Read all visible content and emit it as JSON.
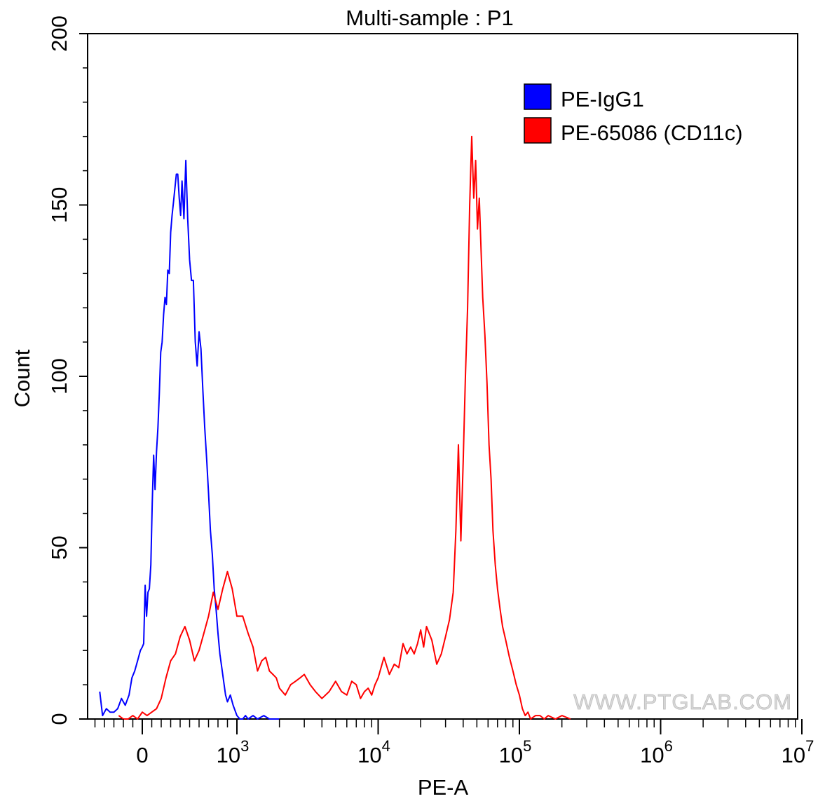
{
  "chart_data": {
    "type": "line",
    "title": "Multi-sample : P1",
    "xlabel": "PE-A",
    "ylabel": "Count",
    "xscale": "biexponential",
    "ylim": [
      0,
      200
    ],
    "x_ticks": [
      {
        "value": 0,
        "label": "0",
        "sup": ""
      },
      {
        "value": 1000,
        "label": "10",
        "sup": "3"
      },
      {
        "value": 10000,
        "label": "10",
        "sup": "4"
      },
      {
        "value": 100000,
        "label": "10",
        "sup": "5"
      },
      {
        "value": 1000000,
        "label": "10",
        "sup": "6"
      },
      {
        "value": 10000000,
        "label": "10",
        "sup": "7"
      }
    ],
    "y_ticks": [
      {
        "value": 0,
        "label": "0"
      },
      {
        "value": 50,
        "label": "50"
      },
      {
        "value": 100,
        "label": "100"
      },
      {
        "value": 150,
        "label": "150"
      },
      {
        "value": 200,
        "label": "200"
      }
    ],
    "legend_position": "top-right",
    "watermark": "WWW.PTGLAB.COM",
    "series": [
      {
        "name": "PE-IgG1",
        "color": "#0000ff",
        "x": [
          -450,
          -420,
          -380,
          -340,
          -300,
          -260,
          -220,
          -180,
          -140,
          -110,
          -80,
          -50,
          -20,
          0,
          15,
          30,
          45,
          60,
          75,
          90,
          105,
          120,
          135,
          150,
          165,
          180,
          195,
          210,
          225,
          240,
          255,
          270,
          285,
          300,
          315,
          330,
          345,
          360,
          375,
          390,
          405,
          420,
          440,
          460,
          480,
          500,
          520,
          540,
          560,
          580,
          600,
          620,
          640,
          660,
          680,
          700,
          720,
          740,
          760,
          780,
          800,
          820,
          840,
          860,
          880,
          900,
          930,
          960,
          1000,
          1050,
          1100,
          1150,
          1200,
          1300,
          1400,
          1550,
          1700,
          1850,
          2000
        ],
        "y": [
          8,
          1,
          3,
          2,
          2,
          3,
          6,
          4,
          7,
          12,
          14,
          17,
          20,
          21,
          22,
          39,
          30,
          37,
          38,
          45,
          63,
          77,
          67,
          78,
          85,
          95,
          107,
          110,
          118,
          123,
          121,
          131,
          130,
          142,
          147,
          151,
          155,
          159,
          159,
          152,
          147,
          157,
          146,
          163,
          146,
          134,
          128,
          128,
          110,
          103,
          113,
          108,
          96,
          85,
          76,
          66,
          55,
          48,
          38,
          32,
          25,
          19,
          15,
          11,
          7,
          5,
          7,
          4,
          1,
          0,
          0,
          1,
          0,
          1,
          0,
          1,
          0,
          0,
          0
        ]
      },
      {
        "name": "PE-65086 (CD11c)",
        "color": "#ff0000",
        "x": [
          -250,
          -200,
          -150,
          -100,
          -50,
          0,
          50,
          100,
          150,
          200,
          250,
          300,
          350,
          400,
          450,
          500,
          550,
          600,
          650,
          700,
          750,
          800,
          850,
          900,
          950,
          1000,
          1100,
          1200,
          1300,
          1400,
          1500,
          1600,
          1700,
          1800,
          1900,
          2000,
          2200,
          2400,
          2600,
          2800,
          3000,
          3300,
          3600,
          4000,
          4500,
          5000,
          5500,
          6000,
          6500,
          7000,
          7500,
          8000,
          8500,
          9000,
          9500,
          10000,
          11000,
          12000,
          13000,
          14000,
          15000,
          16000,
          17000,
          18000,
          19000,
          20000,
          21000,
          22000,
          24000,
          26000,
          28000,
          30000,
          32000,
          34000,
          35500,
          37000,
          38500,
          40000,
          41500,
          43000,
          44500,
          46000,
          47500,
          49000,
          50500,
          52000,
          53500,
          55000,
          57000,
          59000,
          61000,
          63000,
          65000,
          67500,
          70000,
          73000,
          76000,
          80000,
          85000,
          90000,
          95000,
          100000,
          105000,
          110000,
          115000,
          120000,
          130000,
          140000,
          150000,
          160000,
          180000,
          200000,
          230000
        ],
        "y": [
          1,
          0,
          0,
          1,
          0,
          2,
          1,
          2,
          3,
          6,
          12,
          17,
          19,
          24,
          27,
          23,
          17,
          20,
          25,
          30,
          37,
          32,
          38,
          43,
          38,
          30,
          30,
          25,
          21,
          14,
          17,
          18,
          14,
          13,
          12,
          9,
          7,
          10,
          11,
          12,
          13,
          10,
          8,
          6,
          8,
          11,
          8,
          7,
          11,
          10,
          6,
          8,
          9,
          7,
          10,
          12,
          18,
          13,
          16,
          15,
          22,
          19,
          21,
          19,
          22,
          26,
          21,
          27,
          23,
          16,
          19,
          24,
          29,
          37,
          55,
          80,
          52,
          75,
          100,
          120,
          150,
          170,
          152,
          163,
          143,
          152,
          137,
          123,
          112,
          98,
          80,
          70,
          55,
          45,
          38,
          32,
          27,
          23,
          18,
          14,
          10,
          7,
          3,
          1,
          2,
          0,
          1,
          1,
          0,
          1,
          0,
          1,
          0
        ]
      }
    ]
  }
}
